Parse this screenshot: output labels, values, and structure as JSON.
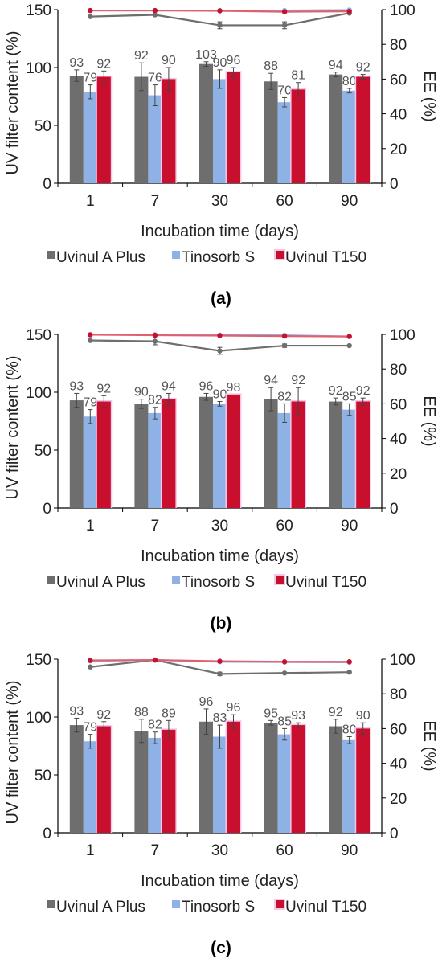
{
  "colors": {
    "uvinul_a_plus": "#6e6e6e",
    "tinosorb_s": "#8fb2e6",
    "uvinul_t150": "#c8102e",
    "uvinul_t150_line": "#e06070",
    "bar_glow": "#f4c7ea",
    "axis": "#000000",
    "text": "#222222"
  },
  "chart_data": [
    {
      "type": "bar",
      "panel_label": "(a)",
      "ylabel": "UV filter content (%)",
      "y2label": "EE (%)",
      "xlabel": "Incubation time (days)",
      "categories": [
        "1",
        "7",
        "30",
        "60",
        "90"
      ],
      "ylim": [
        0,
        150
      ],
      "yticks": [
        "0",
        "50",
        "100",
        "150"
      ],
      "y2lim": [
        0,
        100
      ],
      "y2ticks": [
        "0",
        "20",
        "40",
        "60",
        "80",
        "100"
      ],
      "legend_position": "bottom",
      "series": [
        {
          "name": "Uvinul A Plus",
          "color_key": "uvinul_a_plus",
          "values": [
            93,
            92,
            103,
            88,
            94
          ],
          "labels": [
            "93",
            "92",
            "103",
            "88",
            "94"
          ],
          "errors": [
            5,
            12,
            2,
            7,
            2
          ],
          "ee": [
            96,
            97,
            91,
            91,
            98
          ],
          "ee_errors": [
            0,
            0,
            2,
            2,
            0
          ]
        },
        {
          "name": "Tinosorb S",
          "color_key": "tinosorb_s",
          "values": [
            79,
            76,
            90,
            70,
            80
          ],
          "labels": [
            "79",
            "76",
            "90",
            "70",
            "80"
          ],
          "errors": [
            6,
            9,
            8,
            4,
            2
          ],
          "ee": [
            99.5,
            99.5,
            99.5,
            99.5,
            99.8
          ],
          "ee_errors": [
            0,
            0,
            0,
            0,
            0
          ]
        },
        {
          "name": "Uvinul T150",
          "color_key": "uvinul_t150",
          "values": [
            92,
            90,
            96,
            81,
            92
          ],
          "labels": [
            "92",
            "90",
            "96",
            "81",
            "92"
          ],
          "errors": [
            5,
            10,
            4,
            6,
            2
          ],
          "ee": [
            99.5,
            99.5,
            99.3,
            98.8,
            99
          ],
          "ee_errors": [
            0,
            0,
            0,
            0,
            0
          ]
        }
      ]
    },
    {
      "type": "bar",
      "panel_label": "(b)",
      "ylabel": "UV filter content (%)",
      "y2label": "EE (%)",
      "xlabel": "Incubation time (days)",
      "categories": [
        "1",
        "7",
        "30",
        "60",
        "90"
      ],
      "ylim": [
        0,
        150
      ],
      "yticks": [
        "0",
        "50",
        "100",
        "150"
      ],
      "y2lim": [
        0,
        100
      ],
      "y2ticks": [
        "0",
        "20",
        "40",
        "60",
        "80",
        "100"
      ],
      "legend_position": "bottom",
      "series": [
        {
          "name": "Uvinul A Plus",
          "color_key": "uvinul_a_plus",
          "values": [
            93,
            90,
            96,
            94,
            92
          ],
          "labels": [
            "93",
            "90",
            "96",
            "94",
            "92"
          ],
          "errors": [
            6,
            4,
            3,
            10,
            3
          ],
          "ee": [
            96.5,
            96,
            90.5,
            93.5,
            93.5
          ],
          "ee_errors": [
            0,
            2,
            2,
            1,
            0
          ]
        },
        {
          "name": "Tinosorb S",
          "color_key": "tinosorb_s",
          "values": [
            79,
            82,
            90,
            82,
            85
          ],
          "labels": [
            "79",
            "82",
            "90",
            "82",
            "85"
          ],
          "errors": [
            6,
            5,
            2,
            8,
            5
          ],
          "ee": [
            99.8,
            99.8,
            99.6,
            99.5,
            98.8
          ],
          "ee_errors": [
            0,
            0,
            0,
            0,
            0
          ]
        },
        {
          "name": "Uvinul T150",
          "color_key": "uvinul_t150",
          "values": [
            92,
            94,
            98,
            92,
            92
          ],
          "labels": [
            "92",
            "94",
            "98",
            "92",
            "92"
          ],
          "errors": [
            5,
            5,
            0,
            12,
            3
          ],
          "ee": [
            99.8,
            99.5,
            99.3,
            99,
            98.8
          ],
          "ee_errors": [
            0,
            0,
            0,
            0,
            0
          ]
        }
      ]
    },
    {
      "type": "bar",
      "panel_label": "(c)",
      "ylabel": "UV filter content (%)",
      "y2label": "EE (%)",
      "xlabel": "Incubation time (days)",
      "categories": [
        "1",
        "7",
        "30",
        "60",
        "90"
      ],
      "ylim": [
        0,
        150
      ],
      "yticks": [
        "0",
        "50",
        "100",
        "150"
      ],
      "y2lim": [
        0,
        100
      ],
      "y2ticks": [
        "0",
        "20",
        "40",
        "60",
        "80",
        "100"
      ],
      "legend_position": "bottom",
      "series": [
        {
          "name": "Uvinul A Plus",
          "color_key": "uvinul_a_plus",
          "values": [
            93,
            88,
            96,
            95,
            92
          ],
          "labels": [
            "93",
            "88",
            "96",
            "95",
            "92"
          ],
          "errors": [
            6,
            10,
            11,
            2,
            6
          ],
          "ee": [
            95.5,
            99.5,
            91.5,
            92,
            92.5
          ],
          "ee_errors": [
            0,
            0,
            1,
            0,
            0
          ]
        },
        {
          "name": "Tinosorb S",
          "color_key": "tinosorb_s",
          "values": [
            79,
            82,
            83,
            85,
            80
          ],
          "labels": [
            "79",
            "82",
            "83",
            "85",
            "80"
          ],
          "errors": [
            6,
            5,
            10,
            5,
            3
          ],
          "ee": [
            99,
            99.5,
            98.5,
            98.3,
            98.2
          ],
          "ee_errors": [
            0,
            0,
            0,
            0,
            0
          ]
        },
        {
          "name": "Uvinul T150",
          "color_key": "uvinul_t150",
          "values": [
            92,
            89,
            96,
            93,
            90
          ],
          "labels": [
            "92",
            "89",
            "96",
            "93",
            "90"
          ],
          "errors": [
            4,
            8,
            6,
            2,
            5
          ],
          "ee": [
            99.3,
            99.5,
            98.8,
            98.5,
            98.5
          ],
          "ee_errors": [
            0,
            0,
            0,
            0,
            0
          ]
        }
      ]
    }
  ]
}
